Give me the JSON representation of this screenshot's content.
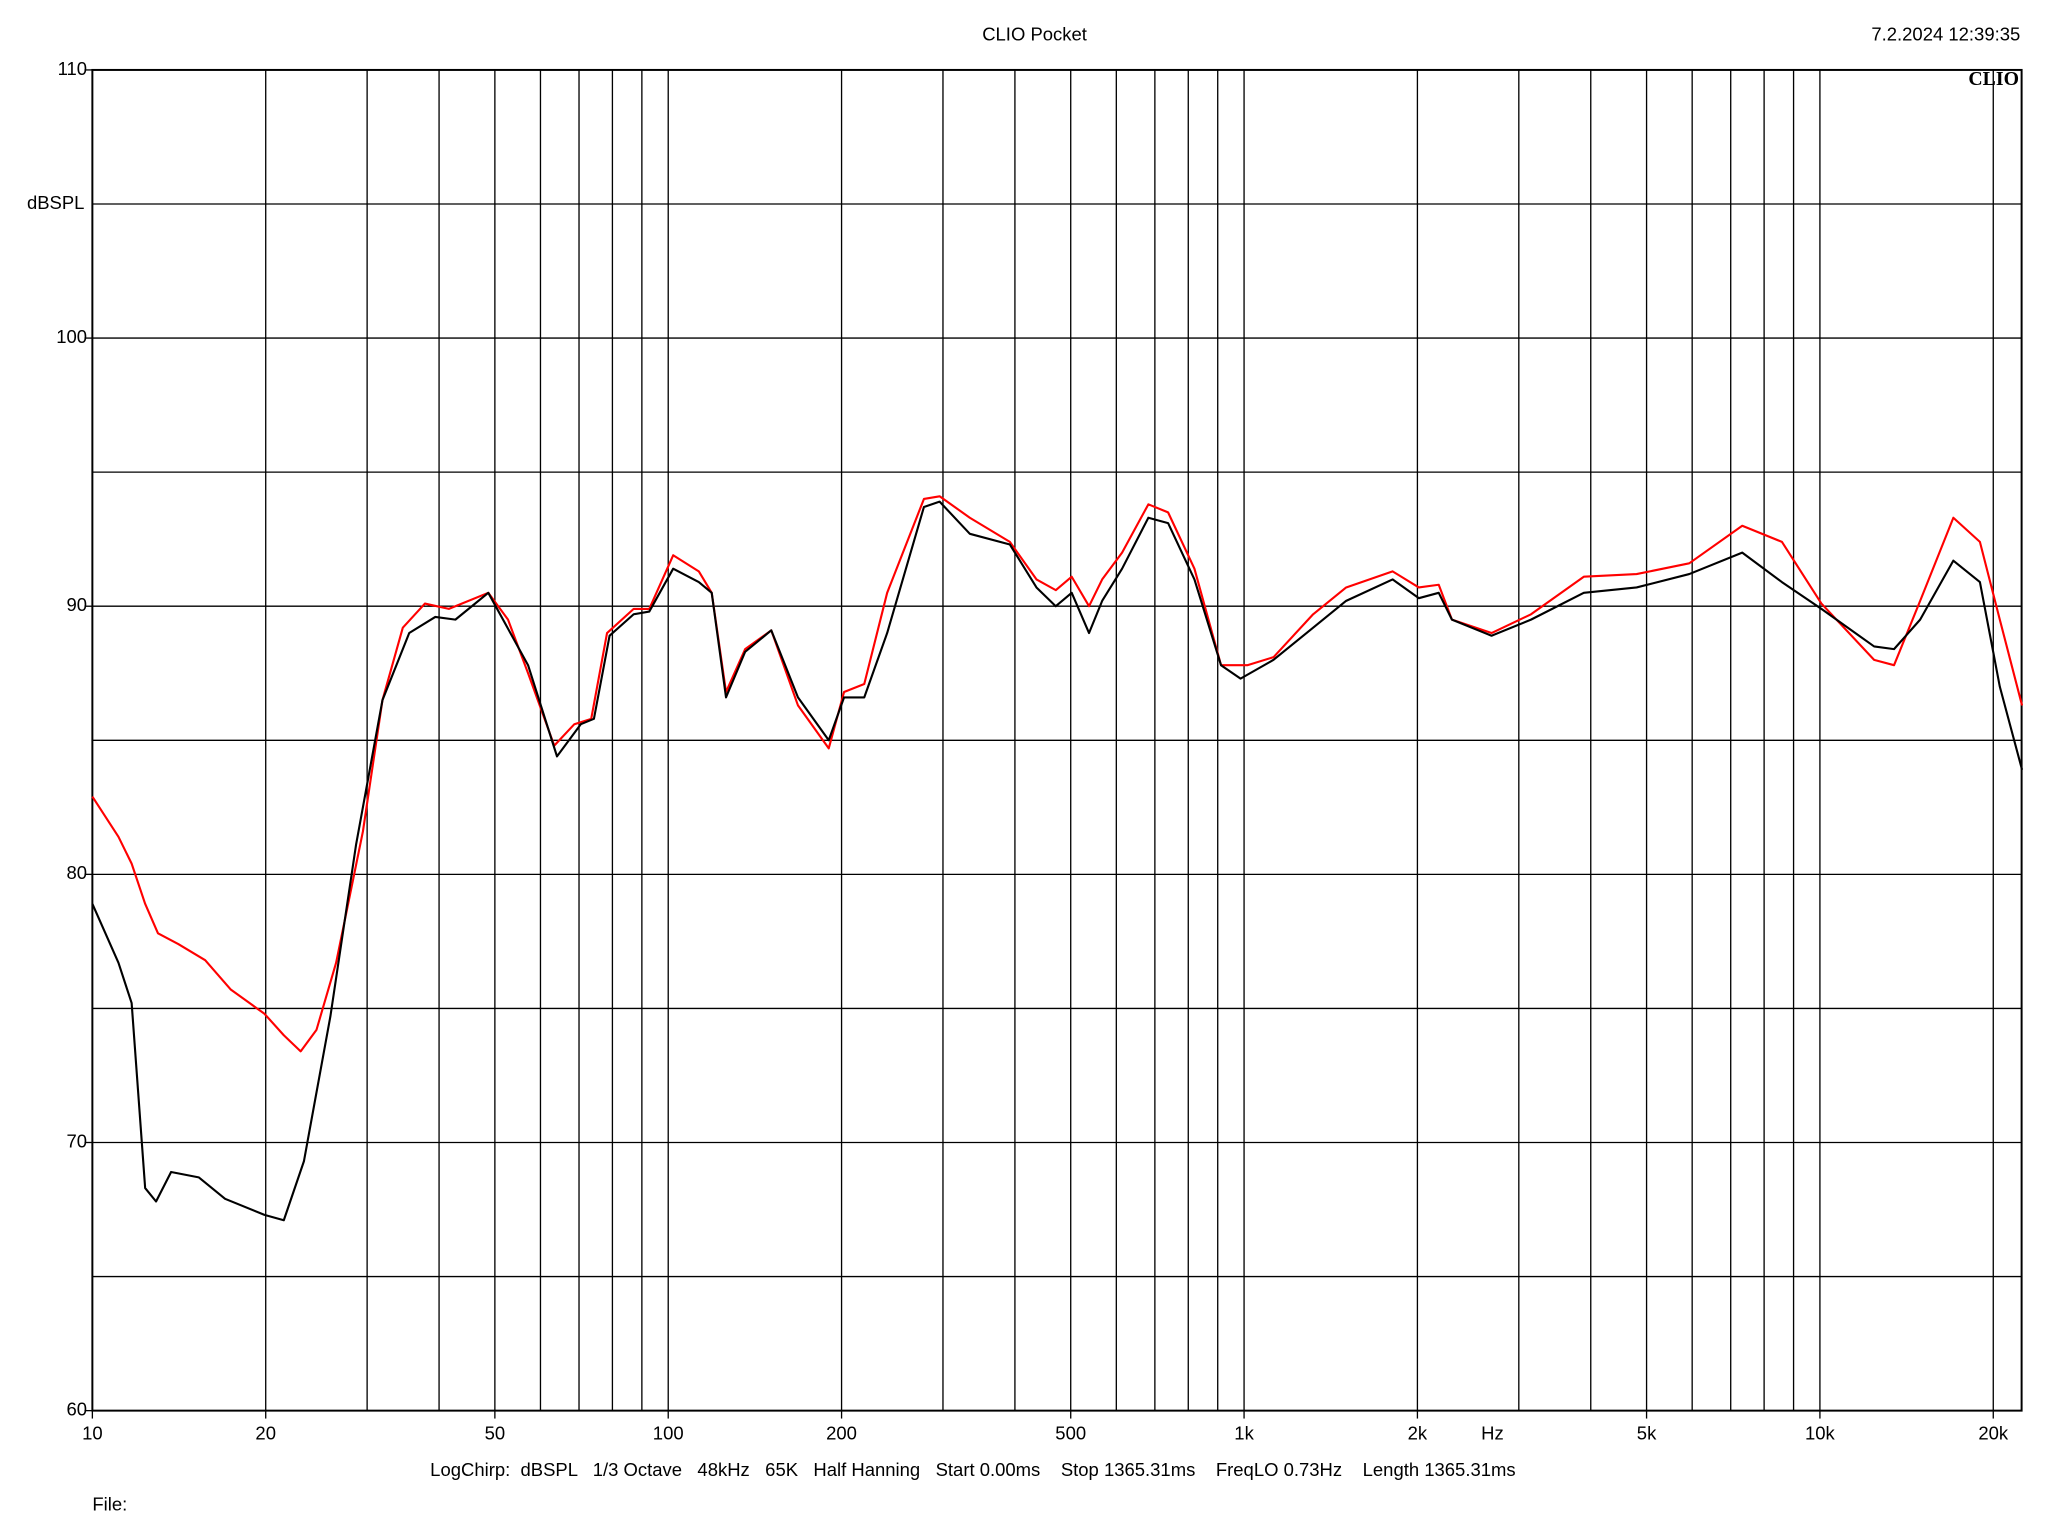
{
  "chart_data": {
    "type": "line",
    "title": "CLIO Pocket",
    "timestamp": "7.2.2024 12:39:35",
    "logo": "CLIO",
    "ylabel": "dBSPL",
    "ylabel_at": 105,
    "x_unit": "Hz",
    "x_unit_at": 2700,
    "footer": "LogChirp:  dBSPL   1/3 Octave   48kHz   65K   Half Hanning   Start 0.00ms    Stop 1365.31ms    FreqLO 0.73Hz    Length 1365.31ms",
    "file_label": "File:",
    "xscale": "log",
    "xlim": [
      10,
      22400
    ],
    "ylim": [
      60,
      110
    ],
    "xticks": [
      10,
      20,
      50,
      100,
      200,
      500,
      {
        "value": 1000,
        "label": "1k"
      },
      {
        "value": 2000,
        "label": "2k"
      },
      {
        "value": 5000,
        "label": "5k"
      },
      {
        "value": 10000,
        "label": "10k"
      },
      {
        "value": 20000,
        "label": "20k"
      }
    ],
    "yticks": [
      60,
      70,
      80,
      90,
      100,
      110
    ],
    "xgrid": [
      20,
      30,
      40,
      50,
      60,
      70,
      80,
      90,
      100,
      200,
      300,
      400,
      500,
      600,
      700,
      800,
      900,
      1000,
      2000,
      3000,
      4000,
      5000,
      6000,
      7000,
      8000,
      9000,
      10000,
      20000
    ],
    "ygrid": [
      65,
      70,
      75,
      80,
      85,
      90,
      95,
      100,
      105
    ],
    "grid": true,
    "series": [
      {
        "color": "#ff0000",
        "x": [
          10,
          11.1,
          11.7,
          12.35,
          13.0,
          14.1,
          15.7,
          17.4,
          19.9,
          21.5,
          23.0,
          24.5,
          26.5,
          29.5,
          31.9,
          34.6,
          37.8,
          41.6,
          48.7,
          52.7,
          57.1,
          63.4,
          68.7,
          73.5,
          78.3,
          87.1,
          92.7,
          102,
          113,
          119,
          126,
          136,
          151,
          168,
          190,
          202,
          219,
          240,
          278,
          296,
          334,
          392,
          436,
          471,
          502,
          538,
          567,
          614,
          682,
          738,
          820,
          912,
          1013,
          1125,
          1318,
          1504,
          1811,
          2011,
          2178,
          2296,
          2690,
          3150,
          3890,
          4805,
          5930,
          7330,
          8590,
          10060,
          12420,
          13450,
          14930,
          17050,
          18960,
          20530,
          22440
        ],
        "values": [
          82.9,
          81.4,
          80.4,
          78.9,
          77.8,
          77.4,
          76.8,
          75.7,
          74.8,
          74.0,
          73.4,
          74.2,
          76.7,
          81.6,
          86.5,
          89.2,
          90.1,
          89.9,
          90.5,
          89.5,
          87.5,
          84.8,
          85.6,
          85.8,
          89.0,
          89.9,
          89.9,
          91.9,
          91.3,
          90.5,
          86.8,
          88.4,
          89.1,
          86.3,
          84.7,
          86.8,
          87.1,
          90.5,
          94.0,
          94.1,
          93.3,
          92.4,
          91.0,
          90.6,
          91.1,
          90.0,
          91.0,
          92.0,
          93.8,
          93.5,
          91.4,
          87.8,
          87.8,
          88.1,
          89.7,
          90.7,
          91.3,
          90.7,
          90.8,
          89.5,
          89.0,
          89.7,
          91.1,
          91.2,
          91.6,
          93.0,
          92.4,
          90.1,
          88.0,
          87.8,
          90.2,
          93.3,
          92.4,
          89.5,
          86.3
        ]
      },
      {
        "color": "#000000",
        "x": [
          10,
          11.1,
          11.7,
          12.35,
          12.9,
          13.7,
          15.3,
          17.0,
          19.9,
          21.5,
          23.3,
          25.9,
          28.7,
          31.9,
          35.5,
          39.4,
          42.7,
          48.7,
          57.1,
          64.1,
          70.5,
          74.3,
          79.1,
          87.1,
          92.7,
          102,
          113,
          119,
          126,
          136,
          151,
          168,
          190,
          202,
          219,
          240,
          278,
          296,
          334,
          392,
          436,
          471,
          502,
          538,
          567,
          614,
          682,
          738,
          820,
          912,
          986,
          1125,
          1318,
          1504,
          1811,
          2011,
          2178,
          2296,
          2690,
          3150,
          3890,
          4805,
          5930,
          7330,
          8590,
          10060,
          12420,
          13450,
          14930,
          17050,
          18960,
          20530,
          22440
        ],
        "values": [
          78.9,
          76.7,
          75.2,
          68.3,
          67.8,
          68.9,
          68.7,
          67.9,
          67.3,
          67.1,
          69.3,
          74.7,
          81.1,
          86.5,
          89.0,
          89.6,
          89.5,
          90.5,
          87.8,
          84.4,
          85.6,
          85.8,
          88.9,
          89.7,
          89.8,
          91.4,
          90.9,
          90.5,
          86.6,
          88.3,
          89.1,
          86.6,
          85.0,
          86.6,
          86.6,
          89.0,
          93.7,
          93.9,
          92.7,
          92.3,
          90.7,
          90.0,
          90.5,
          89.0,
          90.2,
          91.4,
          93.3,
          93.1,
          91.0,
          87.8,
          87.3,
          88.0,
          89.2,
          90.2,
          91.0,
          90.3,
          90.5,
          89.5,
          88.9,
          89.5,
          90.5,
          90.7,
          91.2,
          92.0,
          90.9,
          89.9,
          88.5,
          88.4,
          89.5,
          91.7,
          90.9,
          87.0,
          83.9
        ]
      }
    ]
  }
}
